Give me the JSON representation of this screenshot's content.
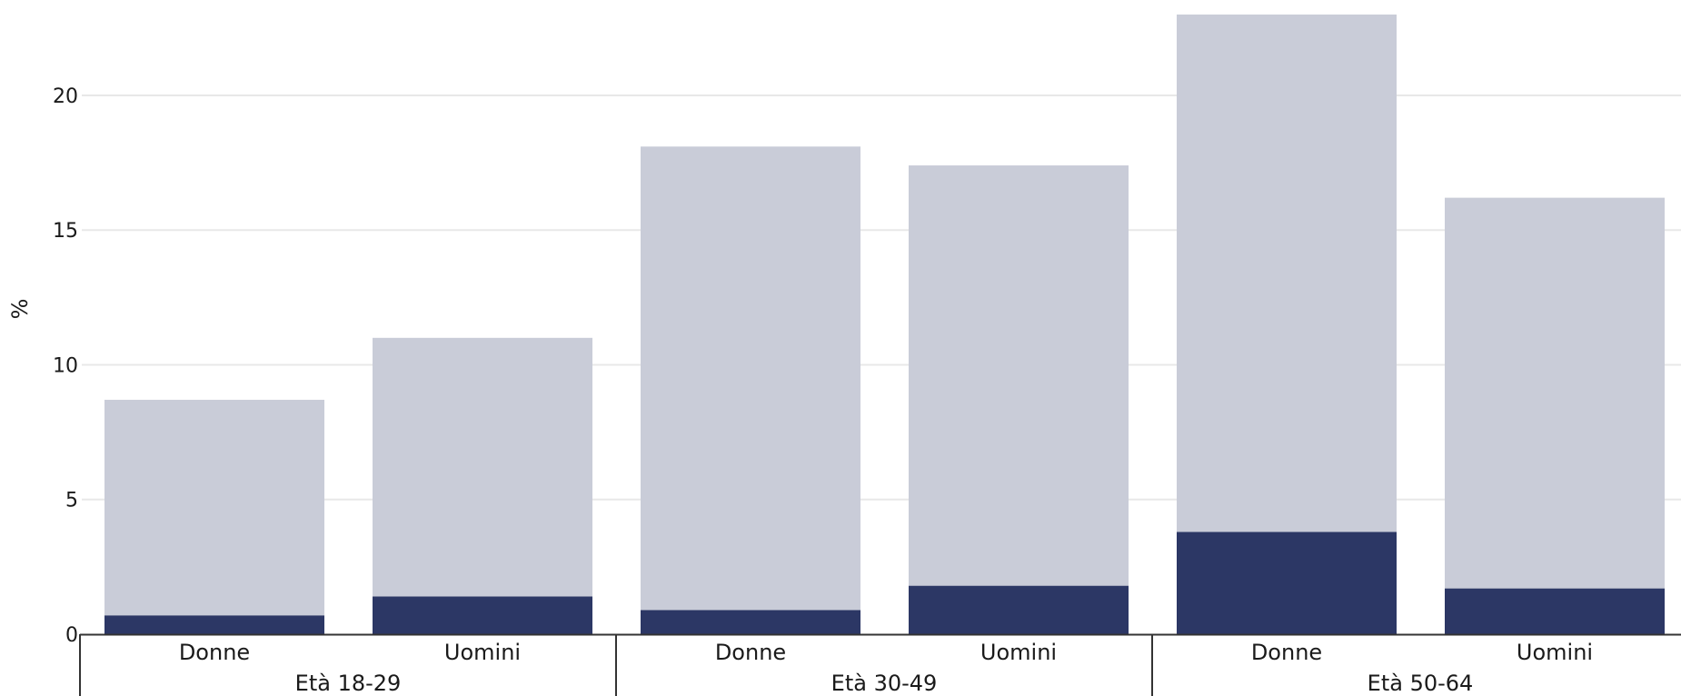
{
  "chart_data": {
    "type": "bar",
    "stacked": true,
    "ylabel": "%",
    "ylim": [
      0,
      23
    ],
    "yticks": [
      0,
      5,
      10,
      15,
      20
    ],
    "grid": true,
    "groups": [
      {
        "label": "Età 18-29",
        "categories": [
          "Donne",
          "Uomini"
        ]
      },
      {
        "label": "Età 30-49",
        "categories": [
          "Donne",
          "Uomini"
        ]
      },
      {
        "label": "Età 50-64",
        "categories": [
          "Donne",
          "Uomini"
        ]
      }
    ],
    "categories": [
      "Donne",
      "Uomini",
      "Donne",
      "Uomini",
      "Donne",
      "Uomini"
    ],
    "series": [
      {
        "values": [
          0.7,
          1.4,
          0.9,
          1.8,
          3.8,
          1.7
        ],
        "color": "#2c3765"
      },
      {
        "values": [
          8.0,
          9.6,
          17.2,
          15.6,
          19.2,
          14.5
        ],
        "color": "#c9ccd8"
      }
    ],
    "totals": [
      8.7,
      11.0,
      18.1,
      17.4,
      23.0,
      16.2
    ]
  }
}
